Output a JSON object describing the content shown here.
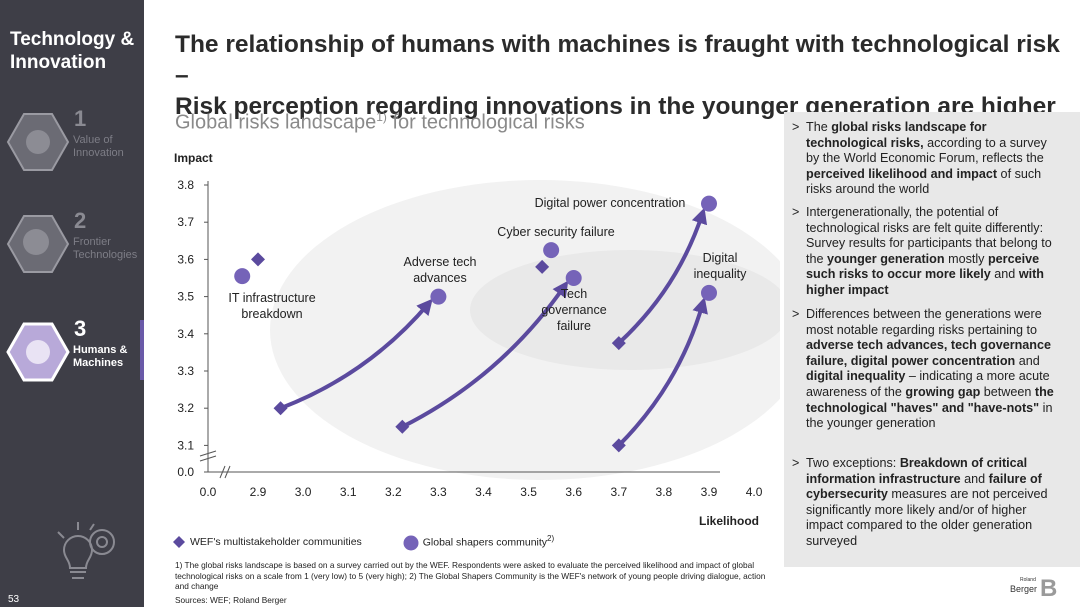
{
  "sidebar": {
    "title_line1": "Technology &",
    "title_line2": "Innovation",
    "sections": [
      {
        "num": "1",
        "label_line1": "Value of",
        "label_line2": "Innovation"
      },
      {
        "num": "2",
        "label_line1": "Frontier",
        "label_line2": "Technologies"
      },
      {
        "num": "3",
        "label_line1": "Humans &",
        "label_line2": "Machines"
      }
    ],
    "page_number": "53"
  },
  "headline": {
    "line1": "The relationship of humans with machines is fraught with technological risk –",
    "line2": "Risk perception regarding innovations in the younger generation are higher"
  },
  "subtitle": {
    "text": "Global risks landscape",
    "sup": "1)",
    "rest": " for technological risks"
  },
  "chart_data": {
    "type": "scatter",
    "ylabel": "Impact",
    "xlabel": "Likelihood",
    "xlim": [
      2.8,
      4.0
    ],
    "ylim": [
      3.05,
      3.8
    ],
    "x_ticks": [
      "0.0",
      "2.9",
      "3.0",
      "3.1",
      "3.2",
      "3.3",
      "3.4",
      "3.5",
      "3.6",
      "3.7",
      "3.8",
      "3.9",
      "4.0"
    ],
    "y_ticks": [
      "0.0",
      "3.1",
      "3.2",
      "3.3",
      "3.4",
      "3.5",
      "3.6",
      "3.7",
      "3.8"
    ],
    "axis_break": true,
    "series": [
      {
        "name": "WEF's multistakeholder communities",
        "marker": "diamond"
      },
      {
        "name": "Global shapers community",
        "marker": "circle"
      }
    ],
    "risks": [
      {
        "label_lines": [
          "IT infrastructure",
          "breakdown"
        ],
        "wef": [
          2.9,
          3.6
        ],
        "shapers": [
          2.865,
          3.555
        ],
        "arrow": false
      },
      {
        "label_lines": [
          "Adverse tech",
          "advances"
        ],
        "wef": [
          2.95,
          3.2
        ],
        "shapers": [
          3.3,
          3.5
        ],
        "arrow": true
      },
      {
        "label_lines": [
          "Cyber security failure"
        ],
        "wef": [
          3.53,
          3.58
        ],
        "shapers": [
          3.55,
          3.625
        ],
        "arrow": false
      },
      {
        "label_lines": [
          "Tech",
          "governance",
          "failure"
        ],
        "wef": [
          3.22,
          3.15
        ],
        "shapers": [
          3.6,
          3.55
        ],
        "arrow": true
      },
      {
        "label_lines": [
          "Digital power concentration"
        ],
        "wef": [
          3.7,
          3.375
        ],
        "shapers": [
          3.9,
          3.75
        ],
        "arrow": true
      },
      {
        "label_lines": [
          "Digital",
          "inequality"
        ],
        "wef": [
          3.7,
          3.1
        ],
        "shapers": [
          3.9,
          3.51
        ],
        "arrow": true
      }
    ]
  },
  "legend": {
    "wef": "WEF's multistakeholder communities",
    "shapers": "Global shapers community",
    "shapers_sup": "2)"
  },
  "footnote": "1) The global risks landscape is based on a survey carried out by the WEF. Respondents were asked to evaluate the perceived likelihood and impact of global technological risks on a scale from 1 (very low) to 5 (very high); 2) The Global Shapers Community is the WEF's network of young people driving dialogue, action and change",
  "sources": "Sources: WEF; Roland Berger",
  "bullets": [
    [
      {
        "t": "The ",
        "b": false
      },
      {
        "t": "global risks landscape for technological risks,",
        "b": true
      },
      {
        "t": " according to a survey by the World Economic Forum, reflects the ",
        "b": false
      },
      {
        "t": "perceived likelihood and impact",
        "b": true
      },
      {
        "t": " of such risks around the world",
        "b": false
      }
    ],
    [
      {
        "t": "Intergenerationally, the potential of technological risks are felt quite differently: Survey results for participants that belong to the ",
        "b": false
      },
      {
        "t": "younger generation",
        "b": true
      },
      {
        "t": " mostly ",
        "b": false
      },
      {
        "t": "perceive such risks to occur more likely",
        "b": true
      },
      {
        "t": " and ",
        "b": false
      },
      {
        "t": "with higher impact",
        "b": true
      }
    ],
    [
      {
        "t": "Differences between the generations were most notable regarding risks pertaining to ",
        "b": false
      },
      {
        "t": "adverse tech advances, tech governance failure, digital power concentration",
        "b": true
      },
      {
        "t": " and ",
        "b": false
      },
      {
        "t": "digital inequality",
        "b": true
      },
      {
        "t": " – indicating a more acute awareness of the ",
        "b": false
      },
      {
        "t": "growing gap",
        "b": true
      },
      {
        "t": " between ",
        "b": false
      },
      {
        "t": "the technological \"haves\" and \"have-nots\"",
        "b": true
      },
      {
        "t": " in the younger generation",
        "b": false
      }
    ],
    [
      {
        "t": "Two exceptions: ",
        "b": false
      },
      {
        "t": "Breakdown of critical information infrastructure",
        "b": true
      },
      {
        "t": " and ",
        "b": false
      },
      {
        "t": "failure of cybersecurity",
        "b": true
      },
      {
        "t": " measures are not perceived significantly more likely and/or of higher impact compared to the older generation surveyed",
        "b": false
      }
    ]
  ],
  "logo": {
    "small": "Roland",
    "text": "Berger",
    "mark": "B"
  },
  "colors": {
    "sidebar": "#3e3e47",
    "accent": "#6a5aa8",
    "marker": "#5b4a9e",
    "infobox": "#e8e8e8"
  }
}
